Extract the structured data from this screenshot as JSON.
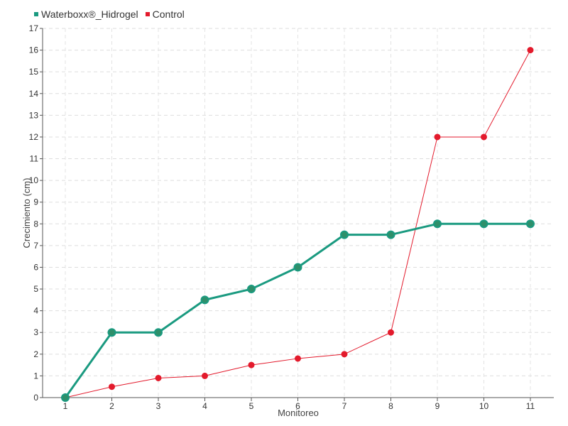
{
  "chart_data": {
    "type": "line",
    "categories": [
      "1",
      "2",
      "3",
      "4",
      "5",
      "6",
      "7",
      "8",
      "9",
      "10",
      "11"
    ],
    "series": [
      {
        "name": "Waterboxx®_Hidrogel",
        "color": "#1a9a80",
        "values": [
          0,
          3,
          3,
          4.5,
          5,
          6,
          7.5,
          7.5,
          8,
          8,
          8
        ]
      },
      {
        "name": "Control",
        "color": "#e31a2c",
        "values": [
          0,
          0.5,
          0.9,
          1,
          1.5,
          1.8,
          2,
          3,
          12,
          12,
          16
        ]
      }
    ],
    "xlabel": "Monitoreo",
    "ylabel": "Crecimiento (cm)",
    "ylim": [
      0,
      17
    ],
    "yticks": [
      "0",
      "1",
      "2",
      "3",
      "4",
      "5",
      "6",
      "7",
      "8",
      "9",
      "10",
      "11",
      "12",
      "13",
      "14",
      "15",
      "16",
      "17"
    ],
    "grid": true,
    "legend_position": "top-left"
  }
}
